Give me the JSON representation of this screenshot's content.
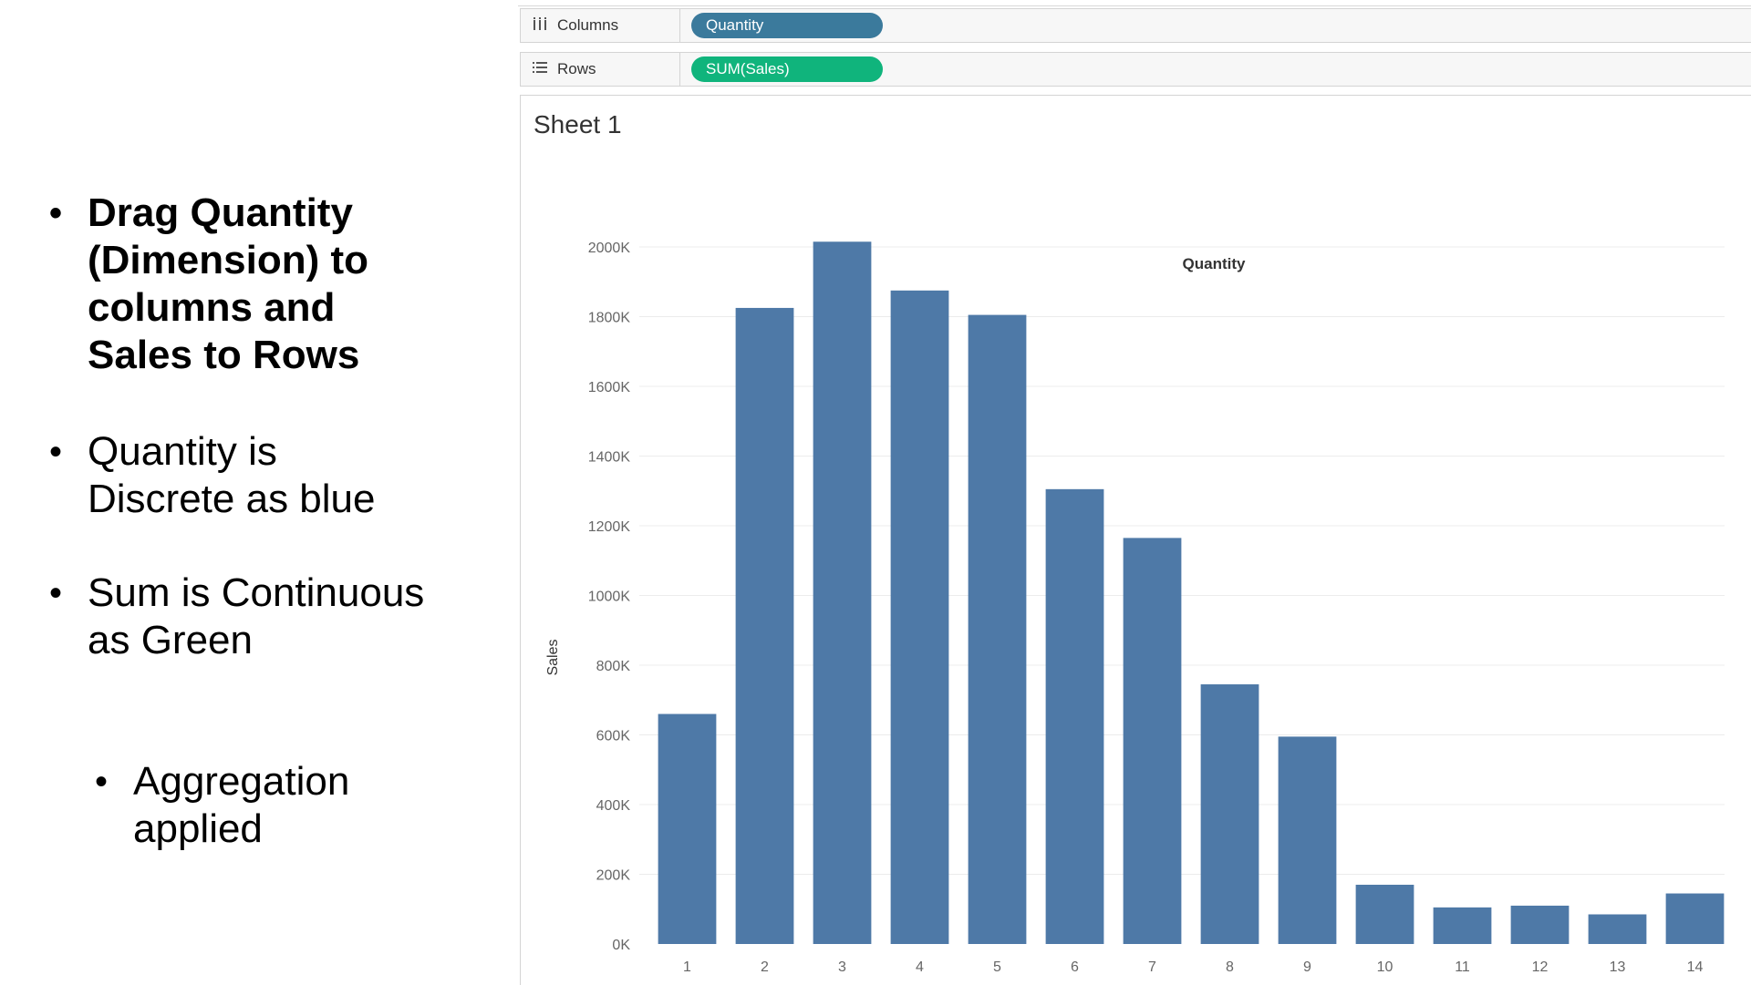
{
  "bullets": [
    {
      "text": "Drag Quantity (Dimension) to columns and Sales to Rows"
    },
    {
      "text": "Quantity is Discrete as blue"
    },
    {
      "text": "Sum is Continuous as Green"
    },
    {
      "text": "Aggregation applied"
    }
  ],
  "shelves": {
    "columns": {
      "label": "Columns",
      "icon": "columns-icon",
      "pill": "Quantity",
      "pill_color": "#3b7a9c"
    },
    "rows": {
      "label": "Rows",
      "icon": "rows-icon",
      "pill": "SUM(Sales)",
      "pill_color": "#10b47c"
    }
  },
  "sheet": {
    "title": "Sheet 1"
  },
  "chart_data": {
    "type": "bar",
    "title": "Quantity",
    "xlabel": "",
    "ylabel": "Sales",
    "categories": [
      "1",
      "2",
      "3",
      "4",
      "5",
      "6",
      "7",
      "8",
      "9",
      "10",
      "11",
      "12",
      "13",
      "14"
    ],
    "values": [
      660000,
      1825000,
      2015000,
      1875000,
      1805000,
      1305000,
      1165000,
      745000,
      595000,
      170000,
      105000,
      110000,
      85000,
      145000
    ],
    "ylim": [
      0,
      2000000
    ],
    "yticks": [
      0,
      200000,
      400000,
      600000,
      800000,
      1000000,
      1200000,
      1400000,
      1600000,
      1800000,
      2000000
    ],
    "ytick_labels": [
      "0K",
      "200K",
      "400K",
      "600K",
      "800K",
      "1000K",
      "1200K",
      "1400K",
      "1600K",
      "1800K",
      "2000K"
    ],
    "bar_color": "#4e79a7",
    "grid": true
  }
}
